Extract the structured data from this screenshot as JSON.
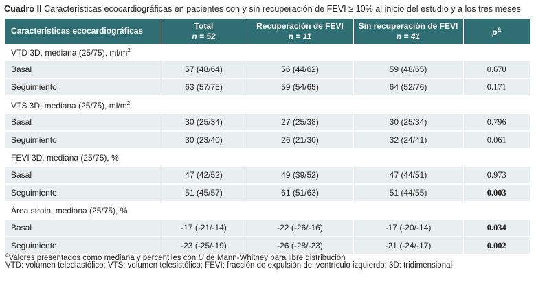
{
  "caption": {
    "label": "Cuadro II",
    "text": "Características ecocardiográficas en pacientes con y sin recuperación de FEVI ≥ 10% al inicio del estudio y a los tres meses"
  },
  "header": {
    "col0": "Características ecocardiográficas",
    "col1": "Total",
    "col1_n": "n = 52",
    "col2": "Recuperación de FEVI",
    "col2_n": "n = 11",
    "col3": "Sin recuperación de FEVI",
    "col3_n": "n = 41",
    "col4_p": "p",
    "col4_sup": "a"
  },
  "sections": [
    {
      "title_main": "VTD 3D, mediana (25/75), ml/m",
      "title_sup": "2",
      "rows": [
        {
          "label": "Basal",
          "total": "57 (48/64)",
          "recup": "56 (44/62)",
          "sin": "59 (48/65)",
          "p": "0.670",
          "p_bold": false
        },
        {
          "label": "Seguimiento",
          "total": "63 (57/75)",
          "recup": "59 (54/65)",
          "sin": "64 (52/76)",
          "p": "0.171",
          "p_bold": false
        }
      ]
    },
    {
      "title_main": "VTS 3D, mediana (25/75), ml/m",
      "title_sup": "2",
      "rows": [
        {
          "label": "Basal",
          "total": "30 (25/34)",
          "recup": "27 (25/38)",
          "sin": "30 (25/34)",
          "p": "0.796",
          "p_bold": false
        },
        {
          "label": "Seguimiento",
          "total": "30 (23/40)",
          "recup": "26 (21/30)",
          "sin": "32 (24/41)",
          "p": "0.061",
          "p_bold": false
        }
      ]
    },
    {
      "title_main": "FEVI 3D, mediana (25/75), %",
      "title_sup": "",
      "rows": [
        {
          "label": "Basal",
          "total": "47 (42/52)",
          "recup": "49 (39/52)",
          "sin": "47 (44/51)",
          "p": "0.973",
          "p_bold": false
        },
        {
          "label": "Seguimiento",
          "total": "51 (45/57)",
          "recup": "61 (51/63)",
          "sin": "51 (44/55)",
          "p": "0.003",
          "p_bold": true
        }
      ]
    },
    {
      "title_main": "Área strain, mediana (25/75), %",
      "title_sup": "",
      "rows": [
        {
          "label": "Basal",
          "total": "-17 (-21/-14)",
          "recup": "-22 (-26/-16)",
          "sin": "-17 (-20/-14)",
          "p": "0.034",
          "p_bold": true
        },
        {
          "label": "Seguimiento",
          "total": "-23 (-25/-19)",
          "recup": "-26 (-28/-23)",
          "sin": "-21 (-24/-17)",
          "p": "0.002",
          "p_bold": true
        }
      ]
    }
  ],
  "footnotes": {
    "note_a_sup": "a",
    "note_a_pre": "Valores presentados como mediana y percentiles con ",
    "note_a_u": "U",
    "note_a_post": " de Mann-Whitney para libre distribución",
    "abbrev": "VTD: volumen telediastólico; VTS: volumen telesistólico; FEVI: fracción de expulsión del ventrículo izquierdo; 3D: tridimensional"
  },
  "colors": {
    "header_bg": "#2f6f73",
    "row_bg": "#e9eff0"
  }
}
